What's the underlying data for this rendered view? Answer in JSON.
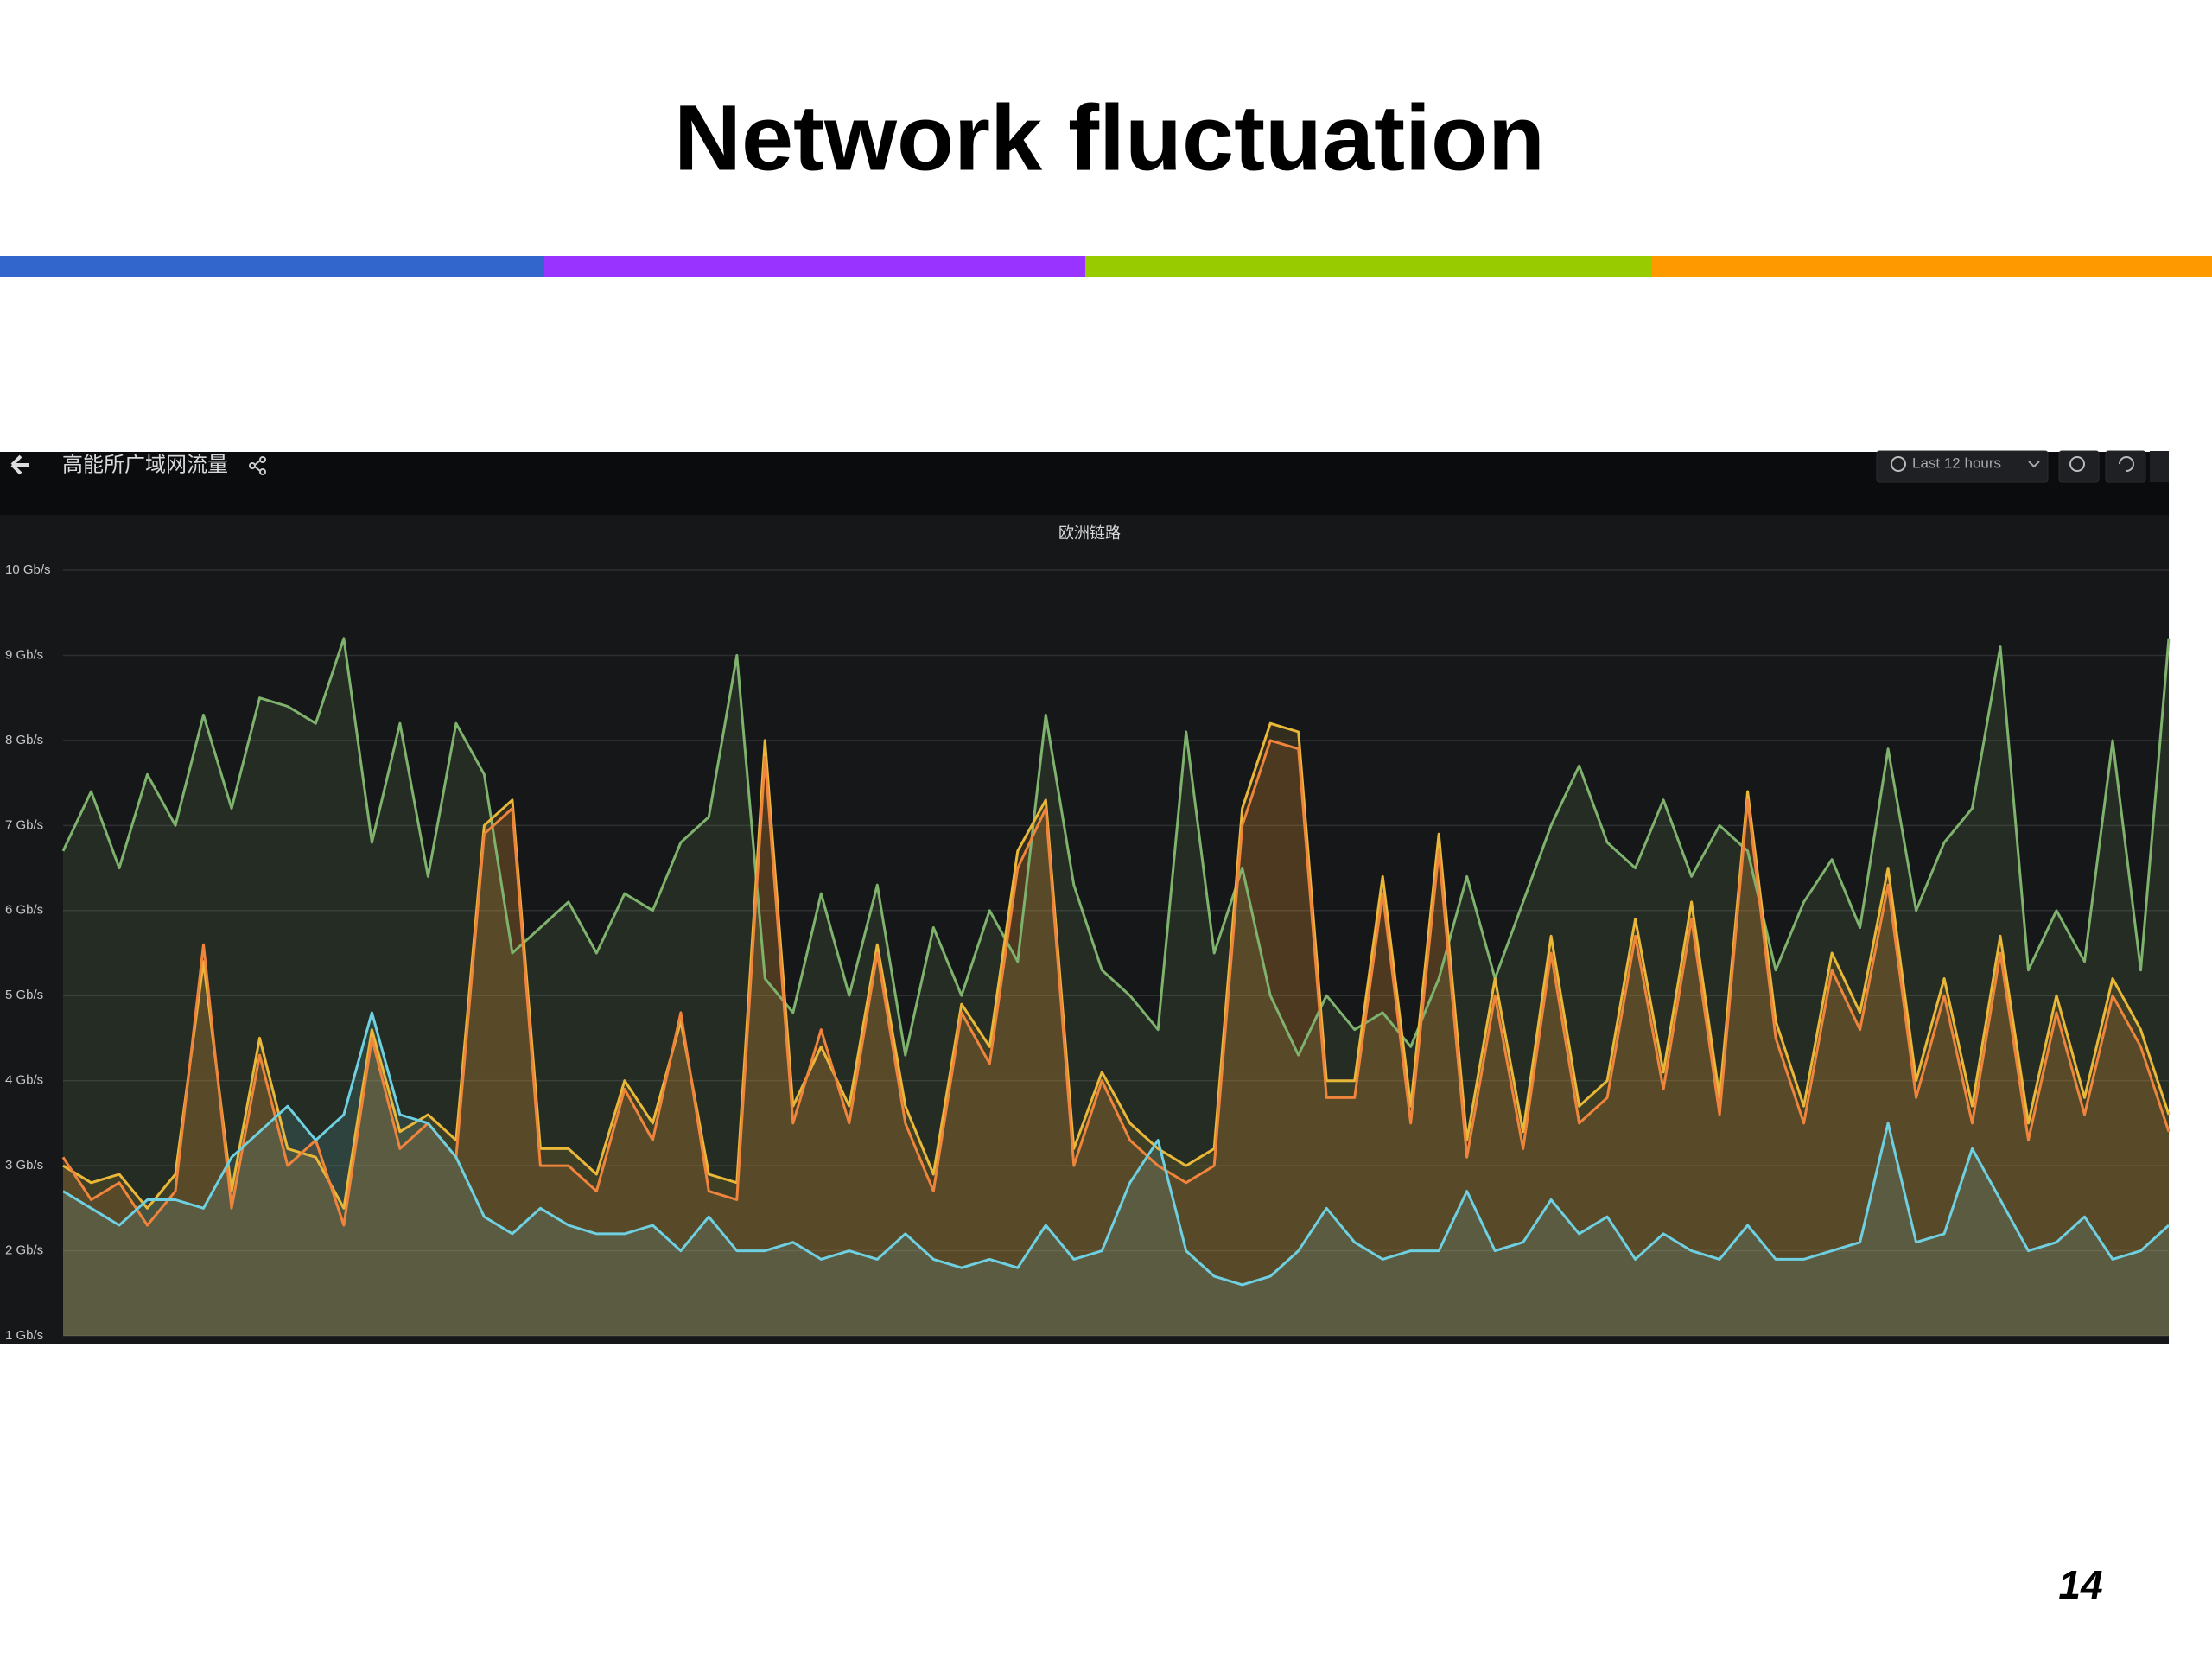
{
  "slide": {
    "title": "Network fluctuation",
    "page_number": "14"
  },
  "dashboard": {
    "title": "高能所广域网流量",
    "time_range": "Last 12 hours"
  },
  "chart_data": {
    "type": "line",
    "title": "欧洲链路",
    "ylim": [
      1,
      10
    ],
    "yticks": [
      {
        "value": 1,
        "label": "1 Gb/s"
      },
      {
        "value": 2,
        "label": "2 Gb/s"
      },
      {
        "value": 3,
        "label": "3 Gb/s"
      },
      {
        "value": 4,
        "label": "4 Gb/s"
      },
      {
        "value": 5,
        "label": "5 Gb/s"
      },
      {
        "value": 6,
        "label": "6 Gb/s"
      },
      {
        "value": 7,
        "label": "7 Gb/s"
      },
      {
        "value": 8,
        "label": "8 Gb/s"
      },
      {
        "value": 9,
        "label": "9 Gb/s"
      },
      {
        "value": 10,
        "label": "10 Gb/s"
      }
    ],
    "grid": true,
    "series": [
      {
        "color": "#7eb26d",
        "values": [
          6.7,
          7.4,
          6.5,
          7.6,
          7.0,
          8.3,
          7.2,
          8.5,
          8.4,
          8.2,
          9.2,
          6.8,
          8.2,
          6.4,
          8.2,
          7.6,
          5.5,
          5.8,
          6.1,
          5.5,
          6.2,
          6.0,
          6.8,
          7.1,
          9.0,
          5.2,
          4.8,
          6.2,
          5.0,
          6.3,
          4.3,
          5.8,
          5.0,
          6.0,
          5.4,
          8.3,
          6.3,
          5.3,
          5.0,
          4.6,
          8.1,
          5.5,
          6.5,
          5.0,
          4.3,
          5.0,
          4.6,
          4.8,
          4.4,
          5.2,
          6.4,
          5.2,
          6.1,
          7.0,
          7.7,
          6.8,
          6.5,
          7.3,
          6.4,
          7.0,
          6.7,
          5.3,
          6.1,
          6.6,
          5.8,
          7.9,
          6.0,
          6.8,
          7.2,
          9.1,
          5.3,
          6.0,
          5.4,
          8.0,
          5.3,
          9.2
        ]
      },
      {
        "color": "#eab839",
        "values": [
          3.0,
          2.8,
          2.9,
          2.5,
          2.9,
          5.4,
          2.7,
          4.5,
          3.2,
          3.1,
          2.5,
          4.6,
          3.4,
          3.6,
          3.3,
          7.0,
          7.3,
          3.2,
          3.2,
          2.9,
          4.0,
          3.5,
          4.7,
          2.9,
          2.8,
          8.0,
          3.7,
          4.4,
          3.7,
          5.6,
          3.7,
          2.9,
          4.9,
          4.4,
          6.7,
          7.3,
          3.2,
          4.1,
          3.5,
          3.2,
          3.0,
          3.2,
          7.2,
          8.2,
          8.1,
          4.0,
          4.0,
          6.4,
          3.7,
          6.9,
          3.3,
          5.2,
          3.4,
          5.7,
          3.7,
          4.0,
          5.9,
          4.1,
          6.1,
          3.8,
          7.4,
          4.7,
          3.7,
          5.5,
          4.8,
          6.5,
          4.0,
          5.2,
          3.7,
          5.7,
          3.5,
          5.0,
          3.8,
          5.2,
          4.6,
          3.6
        ]
      },
      {
        "color": "#ef843c",
        "values": [
          3.1,
          2.6,
          2.8,
          2.3,
          2.7,
          5.6,
          2.5,
          4.3,
          3.0,
          3.3,
          2.3,
          4.5,
          3.2,
          3.5,
          3.1,
          6.9,
          7.2,
          3.0,
          3.0,
          2.7,
          3.9,
          3.3,
          4.8,
          2.7,
          2.6,
          7.8,
          3.5,
          4.6,
          3.5,
          5.5,
          3.5,
          2.7,
          4.8,
          4.2,
          6.5,
          7.2,
          3.0,
          4.0,
          3.3,
          3.0,
          2.8,
          3.0,
          7.0,
          8.0,
          7.9,
          3.8,
          3.8,
          6.2,
          3.5,
          6.7,
          3.1,
          5.0,
          3.2,
          5.5,
          3.5,
          3.8,
          5.7,
          3.9,
          5.9,
          3.6,
          7.3,
          4.5,
          3.5,
          5.3,
          4.6,
          6.3,
          3.8,
          5.0,
          3.5,
          5.5,
          3.3,
          4.8,
          3.6,
          5.0,
          4.4,
          3.4
        ]
      },
      {
        "color": "#6ed0e0",
        "values": [
          2.7,
          2.5,
          2.3,
          2.6,
          2.6,
          2.5,
          3.1,
          3.4,
          3.7,
          3.3,
          3.6,
          4.8,
          3.6,
          3.5,
          3.1,
          2.4,
          2.2,
          2.5,
          2.3,
          2.2,
          2.2,
          2.3,
          2.0,
          2.4,
          2.0,
          2.0,
          2.1,
          1.9,
          2.0,
          1.9,
          2.2,
          1.9,
          1.8,
          1.9,
          1.8,
          2.3,
          1.9,
          2.0,
          2.8,
          3.3,
          2.0,
          1.7,
          1.6,
          1.7,
          2.0,
          2.5,
          2.1,
          1.9,
          2.0,
          2.0,
          2.7,
          2.0,
          2.1,
          2.6,
          2.2,
          2.4,
          1.9,
          2.2,
          2.0,
          1.9,
          2.3,
          1.9,
          1.9,
          2.0,
          2.1,
          3.5,
          2.1,
          2.2,
          3.2,
          2.6,
          2.0,
          2.1,
          2.4,
          1.9,
          2.0,
          2.3
        ]
      }
    ]
  }
}
